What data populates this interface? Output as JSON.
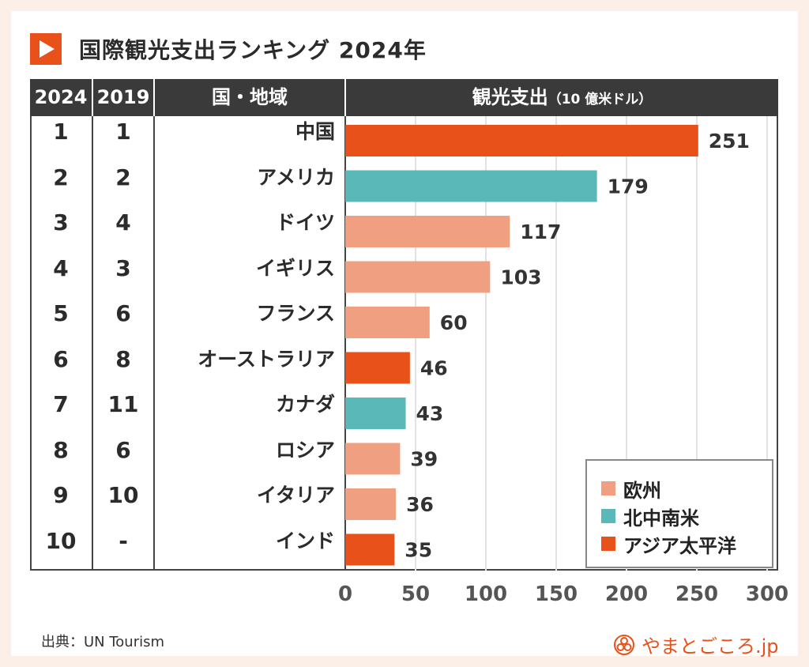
{
  "title": "国際観光支出ランキング 2024年",
  "header": {
    "col_2024": "2024",
    "col_2019": "2019",
    "col_country": "国・地域",
    "col_spend": "観光支出",
    "col_spend_unit": "（10 億米ドル）"
  },
  "colors": {
    "europe": "#f0a080",
    "americas": "#5ab8b8",
    "asia_pacific": "#e8521a",
    "header_bg": "#3a3a3a",
    "page_bg": "#fbefe7"
  },
  "rows": [
    {
      "rank_2024": "1",
      "rank_2019": "1",
      "country": "中国"
    },
    {
      "rank_2024": "2",
      "rank_2019": "2",
      "country": "アメリカ"
    },
    {
      "rank_2024": "3",
      "rank_2019": "4",
      "country": "ドイツ"
    },
    {
      "rank_2024": "4",
      "rank_2019": "3",
      "country": "イギリス"
    },
    {
      "rank_2024": "5",
      "rank_2019": "6",
      "country": "フランス"
    },
    {
      "rank_2024": "6",
      "rank_2019": "8",
      "country": "オーストラリア"
    },
    {
      "rank_2024": "7",
      "rank_2019": "11",
      "country": "カナダ"
    },
    {
      "rank_2024": "8",
      "rank_2019": "6",
      "country": "ロシア"
    },
    {
      "rank_2024": "9",
      "rank_2019": "10",
      "country": "イタリア"
    },
    {
      "rank_2024": "10",
      "rank_2019": "-",
      "country": "インド"
    }
  ],
  "chart_data": {
    "type": "bar",
    "orientation": "horizontal",
    "categories": [
      "中国",
      "アメリカ",
      "ドイツ",
      "イギリス",
      "フランス",
      "オーストラリア",
      "カナダ",
      "ロシア",
      "イタリア",
      "インド"
    ],
    "values": [
      251,
      179,
      117,
      103,
      60,
      46,
      43,
      39,
      36,
      35
    ],
    "regions": [
      "asia_pacific",
      "americas",
      "europe",
      "europe",
      "europe",
      "asia_pacific",
      "americas",
      "europe",
      "europe",
      "asia_pacific"
    ],
    "xlim": [
      0,
      300
    ],
    "xticks": [
      0,
      50,
      100,
      150,
      200,
      250,
      300
    ],
    "grid": true,
    "legend_position": "bottom-right",
    "legend": [
      {
        "key": "europe",
        "label": "欧州"
      },
      {
        "key": "americas",
        "label": "北中南米"
      },
      {
        "key": "asia_pacific",
        "label": "アジア太平洋"
      }
    ]
  },
  "source": "出典：UN Tourism",
  "brand": "やまとごころ.jp"
}
